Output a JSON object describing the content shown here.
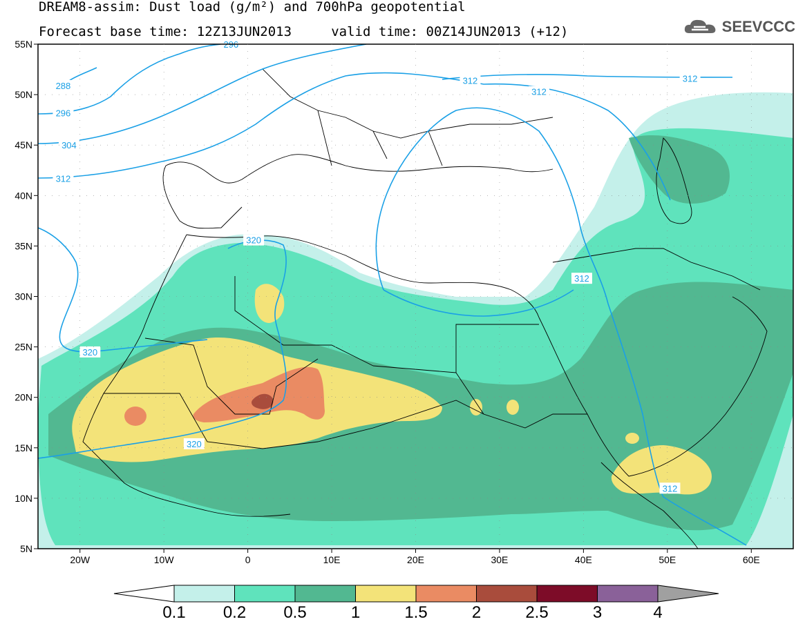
{
  "header": {
    "title_line1": "DREAM8-assim: Dust load (g/m²) and 700hPa geopotential",
    "title_line2": "Forecast base time: 12Z13JUN2013     valid time: 00Z14JUN2013 (+12)",
    "logo_text": "SEEVCCC"
  },
  "map": {
    "lon_range": [
      -25,
      65
    ],
    "lat_range": [
      5,
      55
    ],
    "lat_ticks": [
      {
        "value": 55,
        "label": "55N"
      },
      {
        "value": 50,
        "label": "50N"
      },
      {
        "value": 45,
        "label": "45N"
      },
      {
        "value": 40,
        "label": "40N"
      },
      {
        "value": 35,
        "label": "35N"
      },
      {
        "value": 30,
        "label": "30N"
      },
      {
        "value": 25,
        "label": "25N"
      },
      {
        "value": 20,
        "label": "20N"
      },
      {
        "value": 15,
        "label": "15N"
      },
      {
        "value": 10,
        "label": "10N"
      },
      {
        "value": 5,
        "label": "5N"
      }
    ],
    "lon_ticks": [
      {
        "value": -20,
        "label": "20W"
      },
      {
        "value": -10,
        "label": "10W"
      },
      {
        "value": 0,
        "label": "0"
      },
      {
        "value": 10,
        "label": "10E"
      },
      {
        "value": 20,
        "label": "20E"
      },
      {
        "value": 30,
        "label": "30E"
      },
      {
        "value": 40,
        "label": "40E"
      },
      {
        "value": 50,
        "label": "50E"
      },
      {
        "value": 60,
        "label": "60E"
      }
    ],
    "contour_labels": [
      {
        "text": "288",
        "lon": -22.0,
        "lat": 50.9
      },
      {
        "text": "296",
        "lon": -22.0,
        "lat": 48.2
      },
      {
        "text": "304",
        "lon": -21.3,
        "lat": 45.0
      },
      {
        "text": "312",
        "lon": -22.0,
        "lat": 41.7
      },
      {
        "text": "296",
        "lon": -2.0,
        "lat": 55.0
      },
      {
        "text": "312",
        "lon": 26.5,
        "lat": 51.4
      },
      {
        "text": "312",
        "lon": 34.7,
        "lat": 50.3
      },
      {
        "text": "312",
        "lon": 52.7,
        "lat": 51.6
      },
      {
        "text": "320",
        "lon": 0.7,
        "lat": 35.6
      },
      {
        "text": "312",
        "lon": 39.8,
        "lat": 31.8
      },
      {
        "text": "320",
        "lon": -18.8,
        "lat": 24.5
      },
      {
        "text": "320",
        "lon": -6.4,
        "lat": 15.4
      },
      {
        "text": "312",
        "lon": 50.3,
        "lat": 11.0
      }
    ]
  },
  "colorbar": {
    "ticks": [
      "0.1",
      "0.2",
      "0.5",
      "1",
      "1.5",
      "2",
      "2.5",
      "3",
      "4"
    ],
    "colors": [
      "#c4f0ea",
      "#5fe3bc",
      "#52b891",
      "#f3e379",
      "#ea8b63",
      "#a94c3c",
      "#7d0c28",
      "#8a6199",
      "#a0a0a0"
    ]
  },
  "legend_colors": {
    "contour": "#1aa0e6",
    "boundaries": "#000000",
    "dust_0_1": "#c4f0ea",
    "dust_0_2": "#5fe3bc",
    "dust_0_5": "#52b891",
    "dust_1": "#f3e379",
    "dust_1_5": "#ea8b63",
    "dust_2": "#a94c3c",
    "dust_2_5": "#7d0c28"
  }
}
